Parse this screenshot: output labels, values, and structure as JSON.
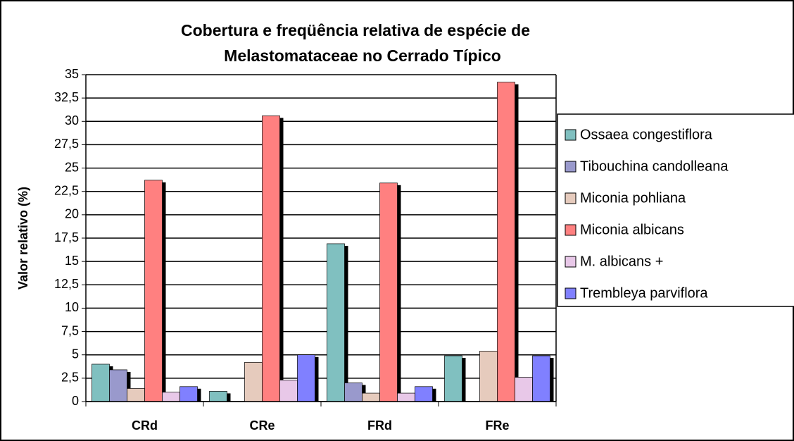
{
  "chart_data": {
    "type": "bar",
    "title": "Cobertura e freqüência relativa de espécie de",
    "subtitle": "Melastomataceae no Cerrado Típico",
    "y_label": "Valor relativo (%)",
    "categories": [
      "CRd",
      "CRe",
      "FRd",
      "FRe"
    ],
    "series": [
      {
        "name": "Ossaea congestiflora",
        "color": "#80c0c0",
        "values": [
          4.0,
          1.1,
          16.9,
          4.9
        ]
      },
      {
        "name": "Tibouchina candolleana",
        "color": "#9999cc",
        "values": [
          3.4,
          0,
          2.0,
          0
        ]
      },
      {
        "name": "Miconia pohliana",
        "color": "#e6cbbd",
        "values": [
          1.4,
          4.2,
          0.9,
          5.4
        ]
      },
      {
        "name": "Miconia albicans",
        "color": "#ff8080",
        "values": [
          23.7,
          30.6,
          23.4,
          34.2
        ]
      },
      {
        "name": "M. albicans +",
        "color": "#e8c8e8",
        "values": [
          1.0,
          2.3,
          0.9,
          2.6
        ]
      },
      {
        "name": "Trembleya parviflora",
        "color": "#8080ff",
        "values": [
          1.6,
          5.0,
          1.6,
          4.9
        ]
      }
    ],
    "ylim": [
      0,
      35
    ],
    "yticks": [
      0,
      {
        "value": 2.5,
        "label": "2,5"
      },
      5,
      {
        "value": 7.5,
        "label": "7,5"
      },
      10,
      {
        "value": 12.5,
        "label": "12,5"
      },
      15,
      {
        "value": 17.5,
        "label": "17,5"
      },
      20,
      {
        "value": 22.5,
        "label": "22,5"
      },
      25,
      {
        "value": 27.5,
        "label": "27,5"
      },
      30,
      {
        "value": 32.5,
        "label": "32,5"
      },
      35
    ],
    "grid": true,
    "legend": "right"
  }
}
